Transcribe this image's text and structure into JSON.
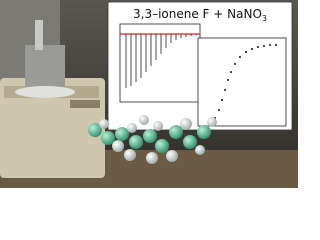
{
  "header": {
    "title": "3,3–ionene F + NaNO",
    "title_subscript": "3"
  }
}
